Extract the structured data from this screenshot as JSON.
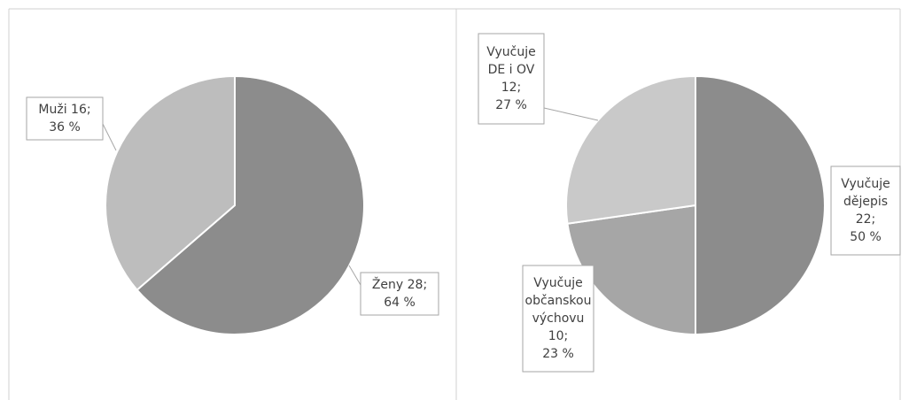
{
  "chart_data": [
    {
      "type": "pie",
      "values": [
        28,
        16
      ],
      "colors": [
        "#8c8c8c",
        "#bdbdbd"
      ],
      "value_labels": [
        [
          "Ženy 28;",
          "64 %"
        ],
        [
          "Muži 16;",
          "36 %"
        ]
      ]
    },
    {
      "type": "pie",
      "values": [
        22,
        10,
        12
      ],
      "colors": [
        "#8c8c8c",
        "#a6a6a6",
        "#c9c9c9"
      ],
      "value_labels": [
        [
          "Vyučuje",
          "dějepis",
          "22;",
          "50 %"
        ],
        [
          "Vyučuje",
          "občanskou",
          "výchovu",
          "10;",
          "23 %"
        ],
        [
          "Vyučuje",
          "DE i OV",
          "12;",
          "27 %"
        ]
      ]
    }
  ]
}
